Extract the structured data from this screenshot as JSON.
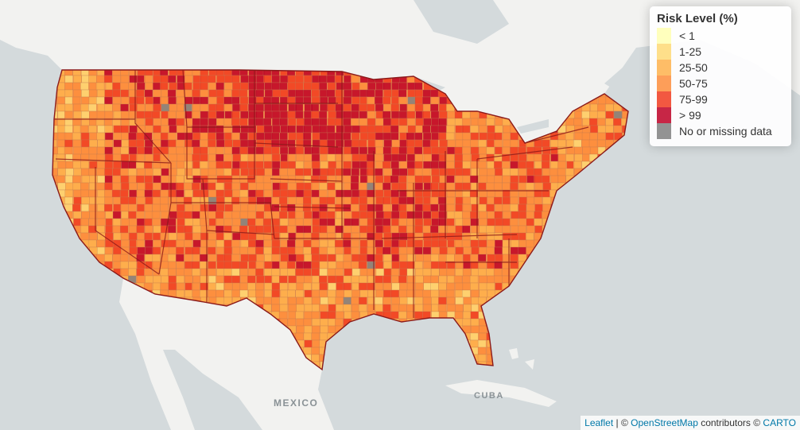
{
  "legend": {
    "title": "Risk Level (%)",
    "items": [
      {
        "label": "< 1",
        "color": "#ffffb2"
      },
      {
        "label": "1-25",
        "color": "#fed976"
      },
      {
        "label": "25-50",
        "color": "#feb24c"
      },
      {
        "label": "50-75",
        "color": "#fd8d3c"
      },
      {
        "label": "75-99",
        "color": "#f03b20"
      },
      {
        "label": "> 99",
        "color": "#bd0026"
      },
      {
        "label": "No or missing data",
        "color": "#808080"
      }
    ]
  },
  "basemap": {
    "water_color": "#d4dadc",
    "land_color": "#f2f2f0",
    "border_color": "#8b1a1a",
    "labels": [
      {
        "text": "MEXICO"
      },
      {
        "text": "CUBA"
      }
    ]
  },
  "attribution": {
    "leaflet": "Leaflet",
    "sep1": " | © ",
    "osm": "OpenStreetMap",
    "mid": " contributors © ",
    "carto": "CARTO"
  }
}
